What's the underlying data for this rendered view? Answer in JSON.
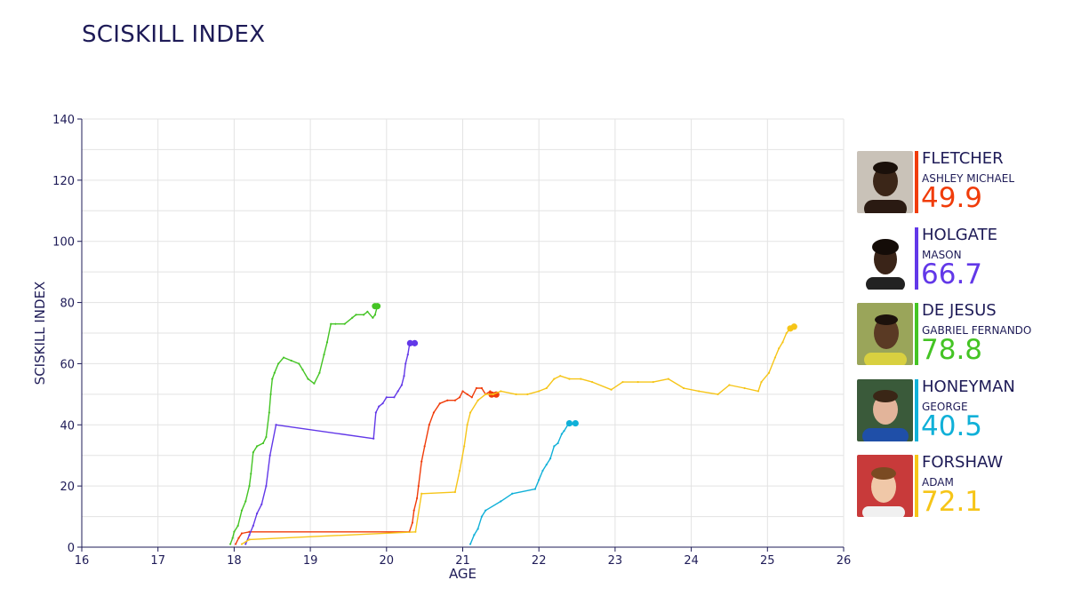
{
  "title": "SCISKILL INDEX",
  "chart_data": {
    "type": "line",
    "title": "SCISKILL INDEX",
    "xlabel": "AGE",
    "ylabel": "SCISKILL INDEX",
    "xlim": [
      16,
      26
    ],
    "ylim": [
      0,
      140
    ],
    "x_ticks": [
      "16",
      "17",
      "18",
      "19",
      "20",
      "21",
      "22",
      "23",
      "24",
      "25",
      "26"
    ],
    "y_ticks": [
      "0",
      "20",
      "40",
      "60",
      "80",
      "100",
      "120",
      "140"
    ],
    "grid": true,
    "legend_position": "right",
    "series": [
      {
        "name": "FLETCHER",
        "color": "#f03c0a",
        "points": [
          [
            18.02,
            1
          ],
          [
            18.06,
            3
          ],
          [
            18.1,
            4.5
          ],
          [
            18.2,
            5
          ],
          [
            20.3,
            5
          ],
          [
            20.34,
            8
          ],
          [
            20.36,
            12
          ],
          [
            20.4,
            16
          ],
          [
            20.42,
            20
          ],
          [
            20.46,
            28
          ],
          [
            20.5,
            33
          ],
          [
            20.56,
            40
          ],
          [
            20.62,
            44
          ],
          [
            20.7,
            47
          ],
          [
            20.8,
            48
          ],
          [
            20.9,
            48
          ],
          [
            20.96,
            49
          ],
          [
            21.0,
            51
          ],
          [
            21.06,
            50
          ],
          [
            21.12,
            49
          ],
          [
            21.18,
            52
          ],
          [
            21.25,
            52
          ],
          [
            21.3,
            50
          ],
          [
            21.36,
            51
          ],
          [
            21.42,
            50
          ],
          [
            21.44,
            49.9
          ]
        ],
        "end_markers": [
          [
            21.38,
            49.9
          ],
          [
            21.44,
            49.9
          ]
        ]
      },
      {
        "name": "HOLGATE",
        "color": "#6238e8",
        "points": [
          [
            18.15,
            1
          ],
          [
            18.2,
            4
          ],
          [
            18.25,
            7
          ],
          [
            18.3,
            11
          ],
          [
            18.36,
            14
          ],
          [
            18.42,
            20
          ],
          [
            18.47,
            30
          ],
          [
            18.55,
            40
          ],
          [
            19.83,
            35.5
          ],
          [
            19.86,
            44
          ],
          [
            19.9,
            46
          ],
          [
            19.95,
            47
          ],
          [
            20.0,
            49
          ],
          [
            20.1,
            49
          ],
          [
            20.15,
            51
          ],
          [
            20.2,
            53
          ],
          [
            20.23,
            56
          ],
          [
            20.25,
            60
          ],
          [
            20.28,
            63
          ],
          [
            20.3,
            66
          ],
          [
            20.35,
            66.7
          ]
        ],
        "end_markers": [
          [
            20.31,
            66.7
          ],
          [
            20.37,
            66.7
          ]
        ]
      },
      {
        "name": "DE JESUS",
        "color": "#44c424",
        "points": [
          [
            17.95,
            1
          ],
          [
            17.98,
            3
          ],
          [
            18.0,
            5
          ],
          [
            18.05,
            7
          ],
          [
            18.1,
            12
          ],
          [
            18.15,
            15
          ],
          [
            18.2,
            20
          ],
          [
            18.22,
            24
          ],
          [
            18.25,
            31
          ],
          [
            18.3,
            33
          ],
          [
            18.38,
            34
          ],
          [
            18.42,
            36
          ],
          [
            18.46,
            44
          ],
          [
            18.48,
            50
          ],
          [
            18.5,
            55
          ],
          [
            18.53,
            57
          ],
          [
            18.58,
            60
          ],
          [
            18.65,
            62
          ],
          [
            18.75,
            61
          ],
          [
            18.85,
            60
          ],
          [
            18.9,
            58
          ],
          [
            18.97,
            55
          ],
          [
            19.05,
            53.5
          ],
          [
            19.12,
            57
          ],
          [
            19.18,
            63
          ],
          [
            19.22,
            67
          ],
          [
            19.27,
            73
          ],
          [
            19.33,
            73
          ],
          [
            19.45,
            73
          ],
          [
            19.55,
            75
          ],
          [
            19.6,
            76
          ],
          [
            19.7,
            76
          ],
          [
            19.75,
            77
          ],
          [
            19.82,
            75
          ],
          [
            19.85,
            76
          ],
          [
            19.88,
            78.8
          ]
        ],
        "end_markers": [
          [
            19.85,
            78.8
          ],
          [
            19.88,
            78.8
          ]
        ]
      },
      {
        "name": "HONEYMAN",
        "color": "#10b0d8",
        "points": [
          [
            21.1,
            1
          ],
          [
            21.15,
            4
          ],
          [
            21.2,
            6
          ],
          [
            21.25,
            10
          ],
          [
            21.3,
            12
          ],
          [
            21.5,
            15
          ],
          [
            21.65,
            17.5
          ],
          [
            21.95,
            19
          ],
          [
            22.0,
            22
          ],
          [
            22.05,
            25
          ],
          [
            22.1,
            27
          ],
          [
            22.15,
            29
          ],
          [
            22.2,
            33
          ],
          [
            22.25,
            34
          ],
          [
            22.3,
            37
          ],
          [
            22.33,
            38
          ],
          [
            22.38,
            40
          ],
          [
            22.42,
            40
          ],
          [
            22.47,
            40.5
          ]
        ],
        "end_markers": [
          [
            22.4,
            40.5
          ],
          [
            22.48,
            40.5
          ]
        ]
      },
      {
        "name": "FORSHAW",
        "color": "#f6c518",
        "points": [
          [
            18.1,
            1
          ],
          [
            18.2,
            2.5
          ],
          [
            20.38,
            5
          ],
          [
            20.46,
            17.5
          ],
          [
            20.9,
            18
          ],
          [
            20.96,
            25
          ],
          [
            21.02,
            33
          ],
          [
            21.06,
            40
          ],
          [
            21.1,
            44
          ],
          [
            21.2,
            48
          ],
          [
            21.3,
            50
          ],
          [
            21.4,
            50
          ],
          [
            21.5,
            51
          ],
          [
            21.7,
            50
          ],
          [
            21.85,
            50
          ],
          [
            22.0,
            51
          ],
          [
            22.1,
            52
          ],
          [
            22.2,
            55
          ],
          [
            22.28,
            56
          ],
          [
            22.4,
            55
          ],
          [
            22.55,
            55
          ],
          [
            22.7,
            54
          ],
          [
            22.95,
            51.5
          ],
          [
            23.1,
            54
          ],
          [
            23.3,
            54
          ],
          [
            23.5,
            54
          ],
          [
            23.7,
            55
          ],
          [
            23.9,
            52
          ],
          [
            24.1,
            51
          ],
          [
            24.35,
            50
          ],
          [
            24.5,
            53
          ],
          [
            24.7,
            52
          ],
          [
            24.88,
            51
          ],
          [
            24.92,
            54
          ],
          [
            25.02,
            57
          ],
          [
            25.1,
            62
          ],
          [
            25.15,
            65
          ],
          [
            25.2,
            67
          ],
          [
            25.25,
            70
          ],
          [
            25.32,
            72.1
          ]
        ],
        "end_markers": [
          [
            25.3,
            71.5
          ],
          [
            25.35,
            72.1
          ]
        ]
      }
    ]
  },
  "legend": [
    {
      "surname": "FLETCHER",
      "given": "ASHLEY MICHAEL",
      "score": "49.9",
      "color": "#f03c0a",
      "photo_icon": "player-photo-icon"
    },
    {
      "surname": "HOLGATE",
      "given": "MASON",
      "score": "66.7",
      "color": "#6238e8",
      "photo_icon": "player-photo-icon"
    },
    {
      "surname": "DE JESUS",
      "given": "GABRIEL FERNANDO",
      "score": "78.8",
      "color": "#44c424",
      "photo_icon": "player-photo-icon"
    },
    {
      "surname": "HONEYMAN",
      "given": "GEORGE",
      "score": "40.5",
      "color": "#10b0d8",
      "photo_icon": "player-photo-icon"
    },
    {
      "surname": "FORSHAW",
      "given": "ADAM",
      "score": "72.1",
      "color": "#f6c518",
      "photo_icon": "player-photo-icon"
    }
  ]
}
